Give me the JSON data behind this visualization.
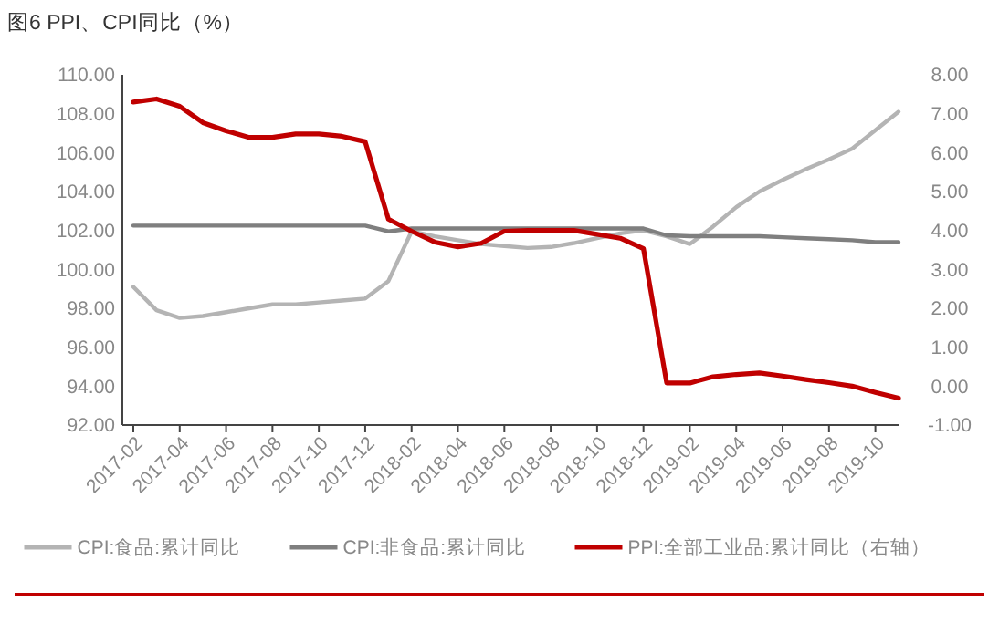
{
  "chart_data": {
    "type": "line",
    "title": "图6 PPI、CPI同比（%）",
    "categories": [
      "2017-02",
      null,
      "2017-04",
      null,
      "2017-06",
      null,
      "2017-08",
      null,
      "2017-10",
      null,
      "2017-12",
      null,
      "2018-02",
      null,
      "2018-04",
      null,
      "2018-06",
      null,
      "2018-08",
      null,
      "2018-10",
      null,
      "2018-12",
      null,
      "2019-02",
      null,
      "2019-04",
      null,
      "2019-06",
      null,
      "2019-08",
      null,
      "2019-10",
      null
    ],
    "series": [
      {
        "name": "CPI:食品:累计同比",
        "color": "#b4b4b4",
        "values": [
          99.1,
          97.9,
          97.5,
          97.6,
          97.8,
          98.0,
          98.2,
          98.2,
          98.3,
          98.4,
          98.5,
          99.4,
          101.95,
          101.7,
          101.5,
          101.3,
          101.2,
          101.1,
          101.15,
          101.35,
          101.6,
          101.85,
          102.0,
          101.7,
          101.3,
          102.2,
          103.2,
          104.0,
          104.6,
          105.15,
          105.65,
          106.2,
          107.15,
          108.1
        ]
      },
      {
        "name": "CPI:非食品:累计同比",
        "color": "#7f7f7f",
        "values": [
          102.25,
          102.25,
          102.25,
          102.25,
          102.25,
          102.25,
          102.25,
          102.25,
          102.25,
          102.25,
          102.25,
          101.95,
          102.1,
          102.1,
          102.1,
          102.1,
          102.1,
          102.1,
          102.1,
          102.1,
          102.1,
          102.1,
          102.1,
          101.75,
          101.7,
          101.7,
          101.7,
          101.7,
          101.65,
          101.6,
          101.55,
          101.5,
          101.4,
          101.4
        ]
      },
      {
        "name": "PPI:全部工业品:累计同比（右轴）",
        "color": "#c00000",
        "axis": "y2",
        "values": [
          7.3,
          7.38,
          7.19,
          6.77,
          6.56,
          6.39,
          6.39,
          6.48,
          6.48,
          6.42,
          6.28,
          4.29,
          3.98,
          3.7,
          3.58,
          3.67,
          3.98,
          4.0,
          4.0,
          4.0,
          3.9,
          3.8,
          3.53,
          0.08,
          0.08,
          0.24,
          0.3,
          0.34,
          0.26,
          0.17,
          0.09,
          0.0,
          -0.16,
          -0.31
        ]
      }
    ],
    "ylim": [
      92,
      110
    ],
    "yticks": [
      {
        "value": 92,
        "label": "92.00"
      },
      {
        "value": 94,
        "label": "94.00"
      },
      {
        "value": 96,
        "label": "96.00"
      },
      {
        "value": 98,
        "label": "98.00"
      },
      {
        "value": 100,
        "label": "100.00"
      },
      {
        "value": 102,
        "label": "102.00"
      },
      {
        "value": 104,
        "label": "104.00"
      },
      {
        "value": 106,
        "label": "106.00"
      },
      {
        "value": 108,
        "label": "108.00"
      },
      {
        "value": 110,
        "label": "110.00"
      }
    ],
    "y2lim": [
      -1,
      8
    ],
    "y2ticks": [
      {
        "value": -1,
        "label": "-1.00"
      },
      {
        "value": 0,
        "label": "0.00"
      },
      {
        "value": 1,
        "label": "1.00"
      },
      {
        "value": 2,
        "label": "2.00"
      },
      {
        "value": 3,
        "label": "3.00"
      },
      {
        "value": 4,
        "label": "4.00"
      },
      {
        "value": 5,
        "label": "5.00"
      },
      {
        "value": 6,
        "label": "6.00"
      },
      {
        "value": 7,
        "label": "7.00"
      },
      {
        "value": 8,
        "label": "8.00"
      }
    ],
    "legend": "bottom",
    "grid": false,
    "marker": "none",
    "line_style": "solid"
  }
}
